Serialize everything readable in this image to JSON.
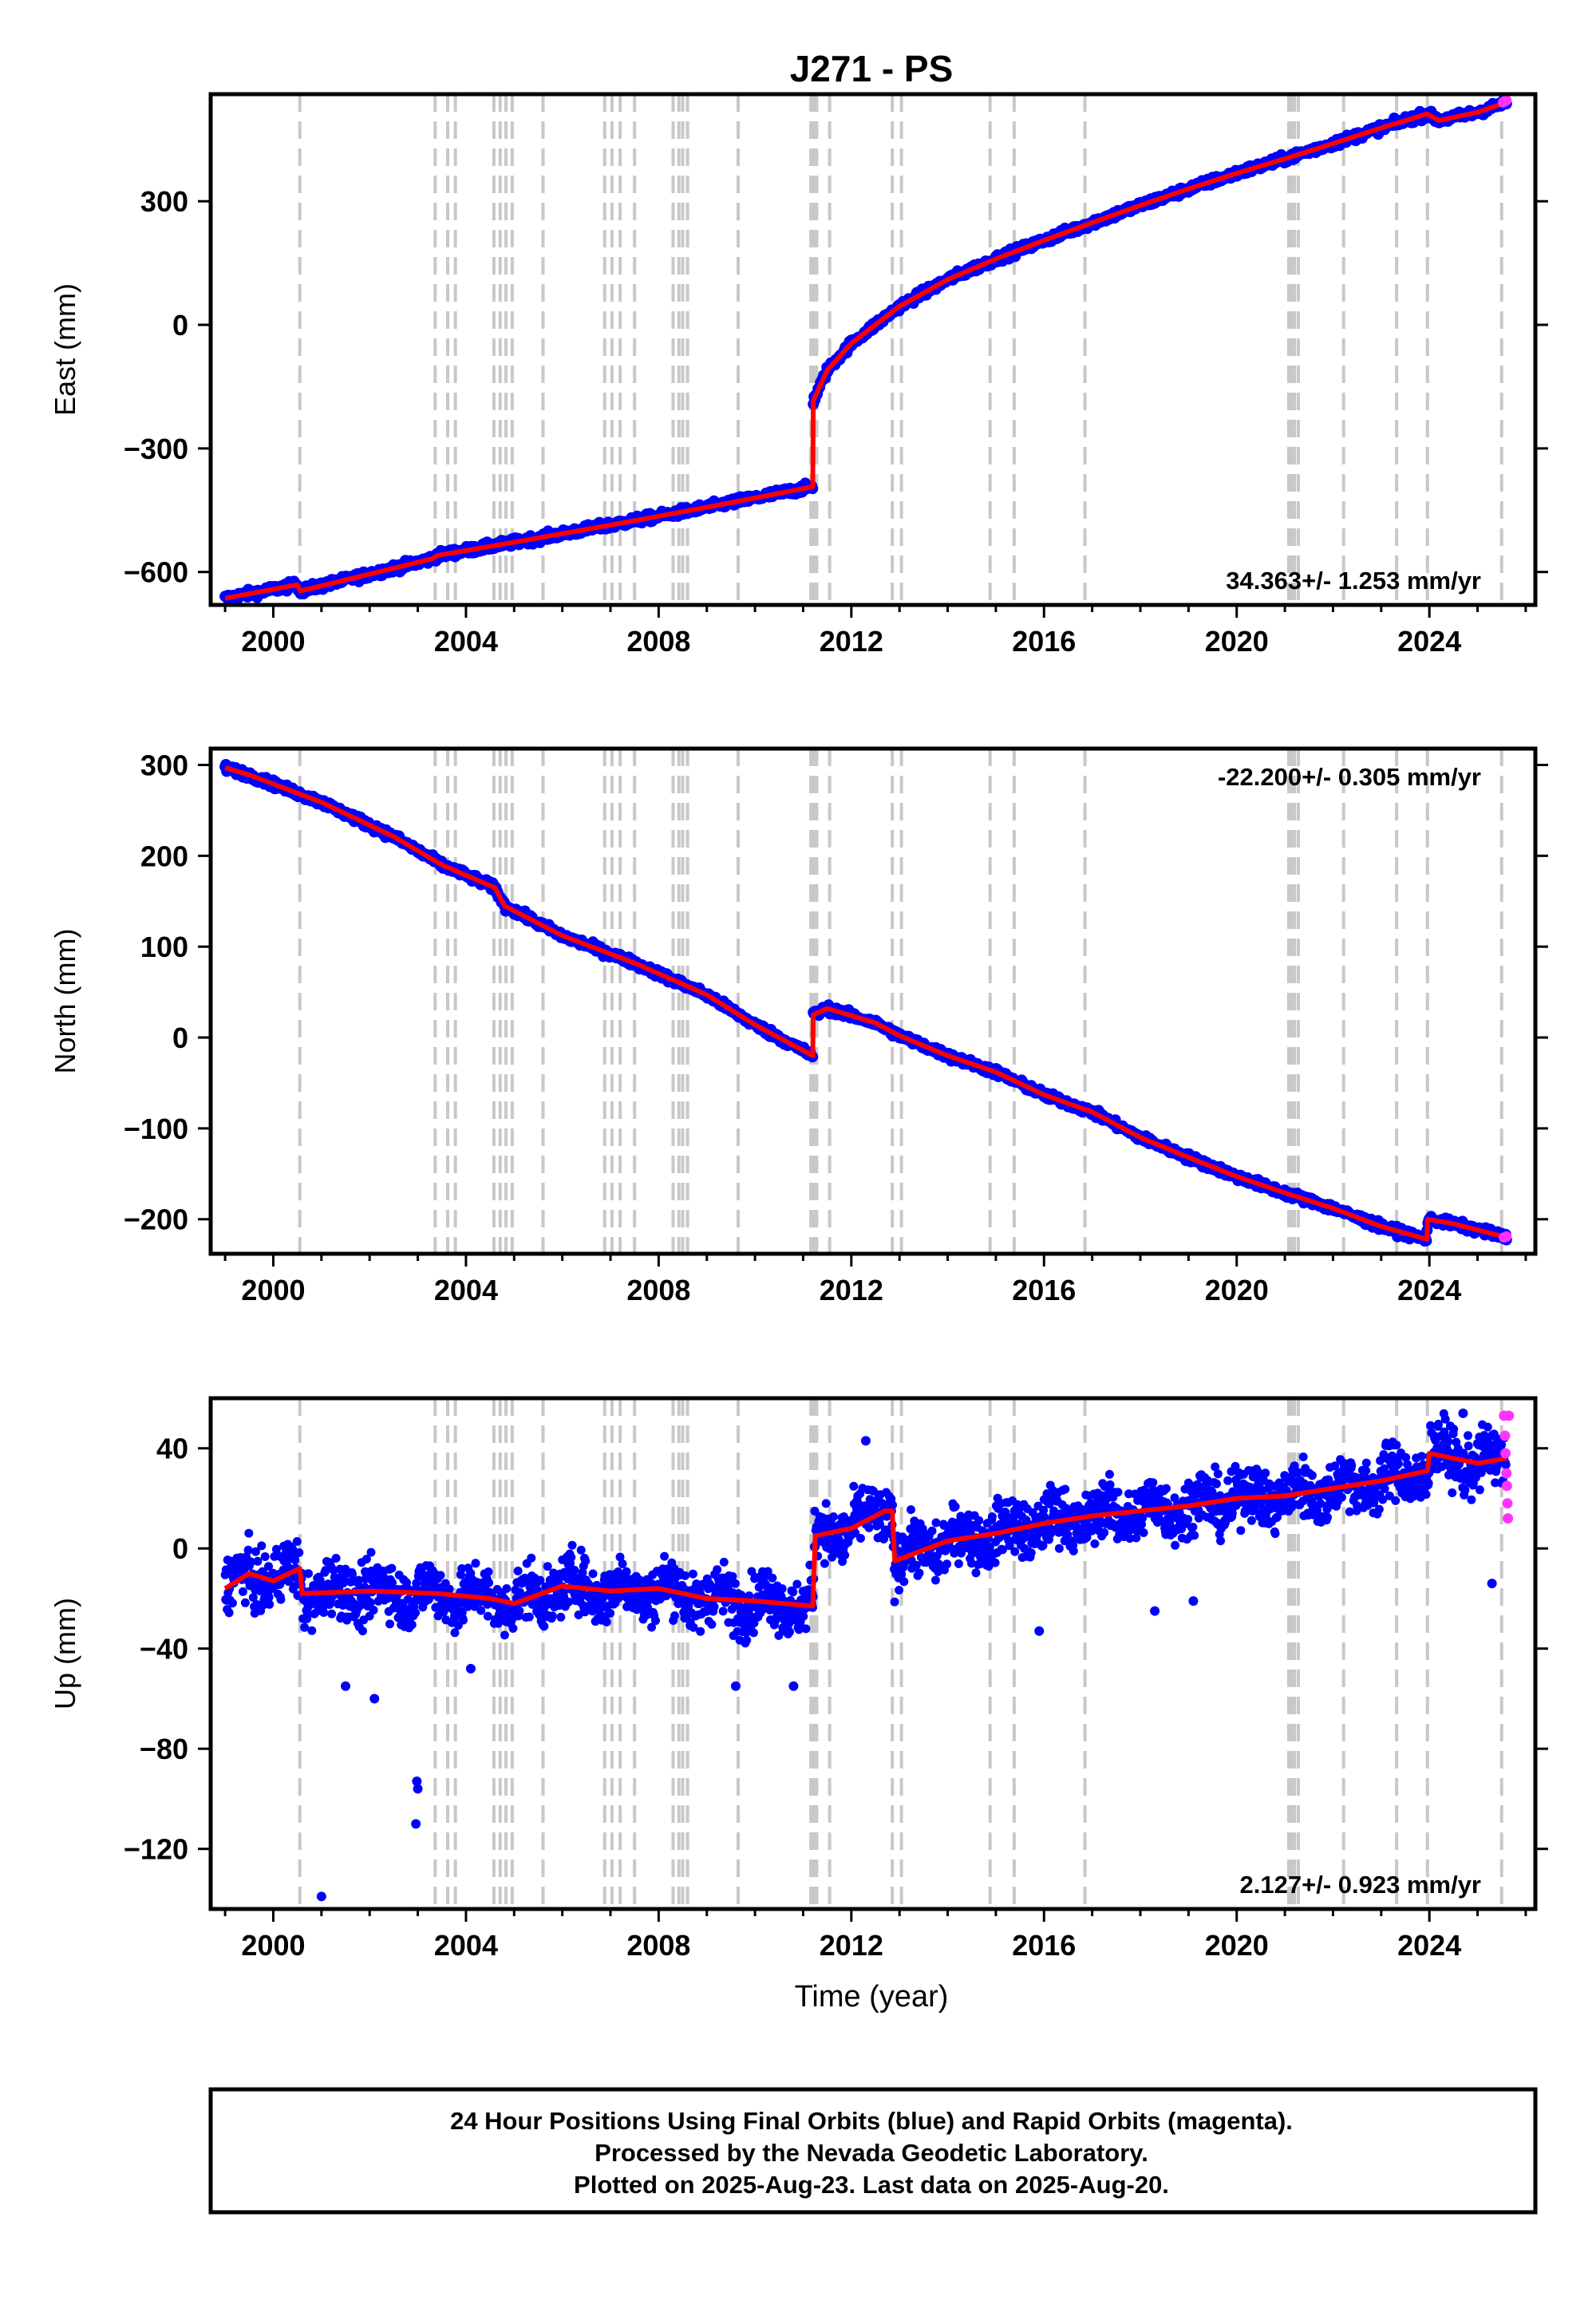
{
  "title": "J271 - PS",
  "xlabel": "Time (year)",
  "footer": {
    "lines": [
      "24 Hour Positions Using Final Orbits (blue) and Rapid Orbits (magenta).",
      "Processed by the Nevada Geodetic Laboratory.",
      "Plotted on 2025-Aug-23. Last data on 2025-Aug-20."
    ]
  },
  "colors": {
    "final": "#0000ff",
    "rapid": "#ff33ff",
    "model": "#ff0000",
    "steps": "#c8c8c8"
  },
  "chart_data": [
    {
      "type": "scatter",
      "name": "east",
      "ylabel": "East (mm)",
      "xlim": [
        1998.7,
        2026.2
      ],
      "ylim": [
        -680,
        560
      ],
      "xticks": [
        2000,
        2004,
        2008,
        2012,
        2016,
        2020,
        2024
      ],
      "yticks": [
        -600,
        -300,
        0,
        300
      ],
      "rate_label": "34.363+/- 1.253 mm/yr",
      "steps": [
        2000.55,
        2003.36,
        2003.62,
        2003.78,
        2004.58,
        2004.71,
        2004.83,
        2004.96,
        2005.6,
        2006.88,
        2007.03,
        2007.2,
        2007.5,
        2008.3,
        2008.42,
        2008.5,
        2008.6,
        2009.65,
        2011.16,
        2011.2,
        2011.24,
        2011.28,
        2011.55,
        2012.85,
        2013.04,
        2014.88,
        2015.38,
        2016.85,
        2021.08,
        2021.14,
        2021.2,
        2021.28,
        2022.22,
        2023.32,
        2023.96,
        2025.5
      ],
      "model": [
        [
          1999.0,
          -664
        ],
        [
          2000.5,
          -631
        ],
        [
          2000.56,
          -646
        ],
        [
          2003.3,
          -568
        ],
        [
          2003.4,
          -560
        ],
        [
          2005.0,
          -528
        ],
        [
          2007.0,
          -486
        ],
        [
          2009.0,
          -443
        ],
        [
          2011.2,
          -393
        ],
        [
          2011.21,
          -185
        ],
        [
          2011.5,
          -110
        ],
        [
          2012.0,
          -45
        ],
        [
          2013.0,
          45
        ],
        [
          2014.0,
          110
        ],
        [
          2015.0,
          160
        ],
        [
          2016.0,
          205
        ],
        [
          2017.0,
          248
        ],
        [
          2018.0,
          290
        ],
        [
          2019.0,
          330
        ],
        [
          2020.0,
          368
        ],
        [
          2021.0,
          403
        ],
        [
          2022.0,
          440
        ],
        [
          2023.0,
          478
        ],
        [
          2023.95,
          512
        ],
        [
          2024.2,
          496
        ],
        [
          2025.0,
          516
        ],
        [
          2025.6,
          540
        ]
      ],
      "series": [
        {
          "name": "final",
          "noise": 7,
          "outliers": []
        }
      ],
      "rapid": [
        [
          2025.53,
          540
        ],
        [
          2025.55,
          542
        ],
        [
          2025.58,
          544
        ],
        [
          2025.6,
          545
        ]
      ]
    },
    {
      "type": "scatter",
      "name": "north",
      "ylabel": "North (mm)",
      "xlim": [
        1998.7,
        2026.2
      ],
      "ylim": [
        -238,
        318
      ],
      "xticks": [
        2000,
        2004,
        2008,
        2012,
        2016,
        2020,
        2024
      ],
      "yticks": [
        -200,
        -100,
        0,
        100,
        200,
        300
      ],
      "rate_label": "-22.200+/- 0.305 mm/yr",
      "steps": [
        2000.55,
        2003.36,
        2003.62,
        2003.78,
        2004.58,
        2004.71,
        2004.83,
        2004.96,
        2005.6,
        2006.88,
        2007.03,
        2007.2,
        2007.5,
        2008.3,
        2008.42,
        2008.5,
        2008.6,
        2009.65,
        2011.16,
        2011.2,
        2011.24,
        2011.28,
        2011.55,
        2012.85,
        2013.04,
        2014.88,
        2015.38,
        2016.85,
        2021.08,
        2021.14,
        2021.2,
        2021.28,
        2022.22,
        2023.32,
        2023.96,
        2025.5
      ],
      "model": [
        [
          1999.0,
          297
        ],
        [
          1999.5,
          289
        ],
        [
          2001.0,
          259
        ],
        [
          2002.5,
          221
        ],
        [
          2003.5,
          190
        ],
        [
          2004.6,
          165
        ],
        [
          2004.8,
          145
        ],
        [
          2006.0,
          112
        ],
        [
          2007.5,
          82
        ],
        [
          2009.0,
          47
        ],
        [
          2010.0,
          14
        ],
        [
          2011.2,
          -20
        ],
        [
          2011.21,
          25
        ],
        [
          2011.5,
          32
        ],
        [
          2012.5,
          16
        ],
        [
          2013.0,
          2
        ],
        [
          2014.0,
          -20
        ],
        [
          2015.0,
          -38
        ],
        [
          2016.0,
          -63
        ],
        [
          2017.0,
          -82
        ],
        [
          2018.0,
          -110
        ],
        [
          2019.0,
          -132
        ],
        [
          2020.0,
          -153
        ],
        [
          2021.0,
          -171
        ],
        [
          2022.0,
          -188
        ],
        [
          2023.0,
          -208
        ],
        [
          2023.95,
          -222
        ],
        [
          2023.96,
          -200
        ],
        [
          2024.5,
          -205
        ],
        [
          2025.6,
          -220
        ]
      ],
      "series": [
        {
          "name": "final",
          "noise": 3,
          "outliers": []
        }
      ],
      "rapid": [
        [
          2025.55,
          -220
        ],
        [
          2025.6,
          -219
        ]
      ]
    },
    {
      "type": "scatter",
      "name": "up",
      "ylabel": "Up (mm)",
      "xlim": [
        1998.7,
        2026.2
      ],
      "ylim": [
        -144,
        60
      ],
      "xticks": [
        2000,
        2004,
        2008,
        2012,
        2016,
        2020,
        2024
      ],
      "yticks": [
        -120,
        -80,
        -40,
        0,
        40
      ],
      "rate_label": "2.127+/- 0.923 mm/yr",
      "steps": [
        2000.55,
        2003.36,
        2003.62,
        2003.78,
        2004.58,
        2004.71,
        2004.83,
        2004.96,
        2005.6,
        2006.88,
        2007.03,
        2007.2,
        2007.5,
        2008.3,
        2008.42,
        2008.5,
        2008.6,
        2009.65,
        2011.16,
        2011.2,
        2011.24,
        2011.28,
        2011.55,
        2012.85,
        2013.04,
        2014.88,
        2015.38,
        2016.85,
        2021.08,
        2021.14,
        2021.2,
        2021.28,
        2022.22,
        2023.32,
        2023.96,
        2025.5
      ],
      "model": [
        [
          1999.0,
          -16
        ],
        [
          1999.5,
          -10
        ],
        [
          2000.0,
          -13
        ],
        [
          2000.55,
          -8
        ],
        [
          2000.6,
          -18
        ],
        [
          2002.0,
          -17
        ],
        [
          2003.4,
          -18
        ],
        [
          2004.5,
          -20
        ],
        [
          2005.0,
          -22
        ],
        [
          2006.0,
          -15
        ],
        [
          2007.0,
          -17
        ],
        [
          2008.0,
          -16
        ],
        [
          2009.0,
          -20
        ],
        [
          2010.0,
          -21
        ],
        [
          2011.2,
          -23
        ],
        [
          2011.25,
          5
        ],
        [
          2012.0,
          8
        ],
        [
          2012.7,
          15
        ],
        [
          2012.85,
          15
        ],
        [
          2012.9,
          -5
        ],
        [
          2014.0,
          3
        ],
        [
          2015.0,
          6
        ],
        [
          2016.0,
          10
        ],
        [
          2017.0,
          13
        ],
        [
          2018.0,
          15
        ],
        [
          2019.0,
          17
        ],
        [
          2020.0,
          20
        ],
        [
          2021.0,
          21
        ],
        [
          2022.0,
          24
        ],
        [
          2023.0,
          27
        ],
        [
          2023.96,
          31
        ],
        [
          2024.0,
          38
        ],
        [
          2025.0,
          34
        ],
        [
          2025.6,
          36
        ]
      ],
      "series": [
        {
          "name": "final",
          "noise": 8,
          "outliers": [
            [
              2001.0,
              -139
            ],
            [
              2002.98,
              -93
            ],
            [
              2003.0,
              -96
            ],
            [
              2002.96,
              -110
            ],
            [
              2001.5,
              -55
            ],
            [
              2002.1,
              -60
            ],
            [
              2004.1,
              -48
            ],
            [
              2009.6,
              -55
            ],
            [
              2010.8,
              -55
            ],
            [
              2012.3,
              43
            ],
            [
              2015.9,
              -33
            ],
            [
              2018.3,
              -25
            ],
            [
              2019.1,
              -21
            ],
            [
              2025.3,
              -14
            ],
            [
              2024.7,
              54
            ]
          ]
        }
      ],
      "rapid": [
        [
          2025.55,
          53
        ],
        [
          2025.57,
          45
        ],
        [
          2025.58,
          38
        ],
        [
          2025.6,
          30
        ],
        [
          2025.61,
          25
        ],
        [
          2025.62,
          18
        ],
        [
          2025.63,
          12
        ],
        [
          2025.65,
          53
        ]
      ]
    }
  ]
}
